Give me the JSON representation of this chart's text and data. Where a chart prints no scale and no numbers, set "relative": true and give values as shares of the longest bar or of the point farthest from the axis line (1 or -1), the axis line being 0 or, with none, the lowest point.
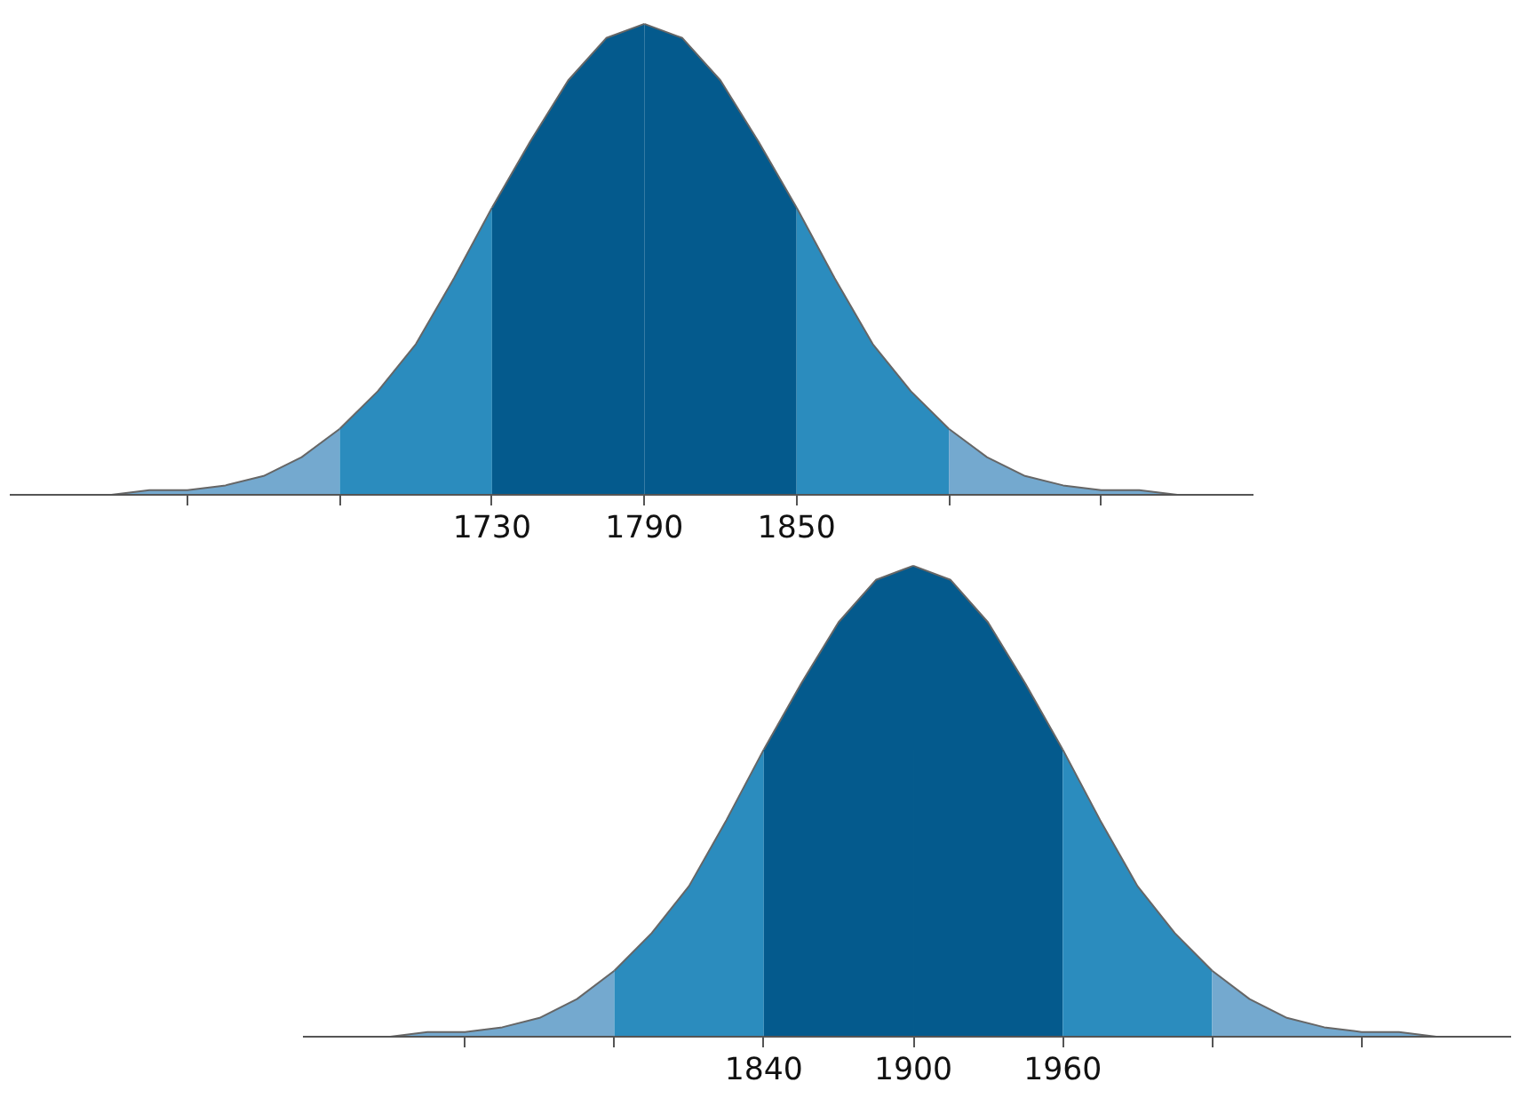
{
  "chart_data": [
    {
      "type": "area",
      "relative": true,
      "grid": false,
      "xlim": [
        1540,
        2030
      ],
      "xticks": [
        {
          "value": 1610,
          "label": null
        },
        {
          "value": 1670,
          "label": null
        },
        1730,
        1790,
        1850,
        {
          "value": 1910,
          "label": null
        },
        {
          "value": 1970,
          "label": null
        }
      ],
      "series": [
        {
          "color": "#74a9cf",
          "x": [
            1550,
            1565,
            1580,
            1595,
            1610,
            1625,
            1640,
            1655,
            1670
          ],
          "values": [
            0,
            0,
            0,
            0.01,
            0.01,
            0.02,
            0.04,
            0.08,
            0.14
          ]
        },
        {
          "color": "#2b8cbe",
          "x": [
            1670,
            1685,
            1700,
            1715,
            1730
          ],
          "values": [
            0.14,
            0.22,
            0.32,
            0.46,
            0.61
          ]
        },
        {
          "color": "#045a8d",
          "x": [
            1730,
            1745,
            1760,
            1775,
            1790
          ],
          "values": [
            0.61,
            0.75,
            0.88,
            0.97,
            1
          ]
        },
        {
          "color": "#045a8d",
          "x": [
            1790,
            1805,
            1820,
            1835,
            1850
          ],
          "values": [
            1,
            0.97,
            0.88,
            0.75,
            0.61
          ]
        },
        {
          "color": "#2b8cbe",
          "x": [
            1850,
            1865,
            1880,
            1895,
            1910
          ],
          "values": [
            0.61,
            0.46,
            0.32,
            0.22,
            0.14
          ]
        },
        {
          "color": "#74a9cf",
          "x": [
            1910,
            1925,
            1940,
            1955,
            1970,
            1985,
            2000,
            2015,
            2030
          ],
          "values": [
            0.14,
            0.08,
            0.04,
            0.02,
            0.01,
            0.01,
            0,
            0,
            0
          ]
        }
      ]
    },
    {
      "type": "area",
      "relative": true,
      "grid": false,
      "xlim": [
        1655,
        2140
      ],
      "xticks": [
        {
          "value": 1720,
          "label": null
        },
        {
          "value": 1780,
          "label": null
        },
        1840,
        1900,
        1960,
        {
          "value": 2020,
          "label": null
        },
        {
          "value": 2080,
          "label": null
        }
      ],
      "series": [
        {
          "color": "#74a9cf",
          "x": [
            1660,
            1675,
            1690,
            1705,
            1720,
            1735,
            1750,
            1765,
            1780
          ],
          "values": [
            0,
            0,
            0,
            0.01,
            0.01,
            0.02,
            0.04,
            0.08,
            0.14
          ]
        },
        {
          "color": "#2b8cbe",
          "x": [
            1780,
            1795,
            1810,
            1825,
            1840
          ],
          "values": [
            0.14,
            0.22,
            0.32,
            0.46,
            0.61
          ]
        },
        {
          "color": "#045a8d",
          "x": [
            1840,
            1855,
            1870,
            1885,
            1900
          ],
          "values": [
            0.61,
            0.75,
            0.88,
            0.97,
            1
          ]
        },
        {
          "color": "#045a8d",
          "x": [
            1900,
            1915,
            1930,
            1945,
            1960
          ],
          "values": [
            1,
            0.97,
            0.88,
            0.75,
            0.61
          ]
        },
        {
          "color": "#2b8cbe",
          "x": [
            1960,
            1975,
            1990,
            2005,
            2020
          ],
          "values": [
            0.61,
            0.46,
            0.32,
            0.22,
            0.14
          ]
        },
        {
          "color": "#74a9cf",
          "x": [
            2020,
            2035,
            2050,
            2065,
            2080,
            2095,
            2110,
            2125,
            2140
          ],
          "values": [
            0.14,
            0.08,
            0.04,
            0.02,
            0.01,
            0.01,
            0,
            0,
            0
          ]
        }
      ]
    }
  ]
}
